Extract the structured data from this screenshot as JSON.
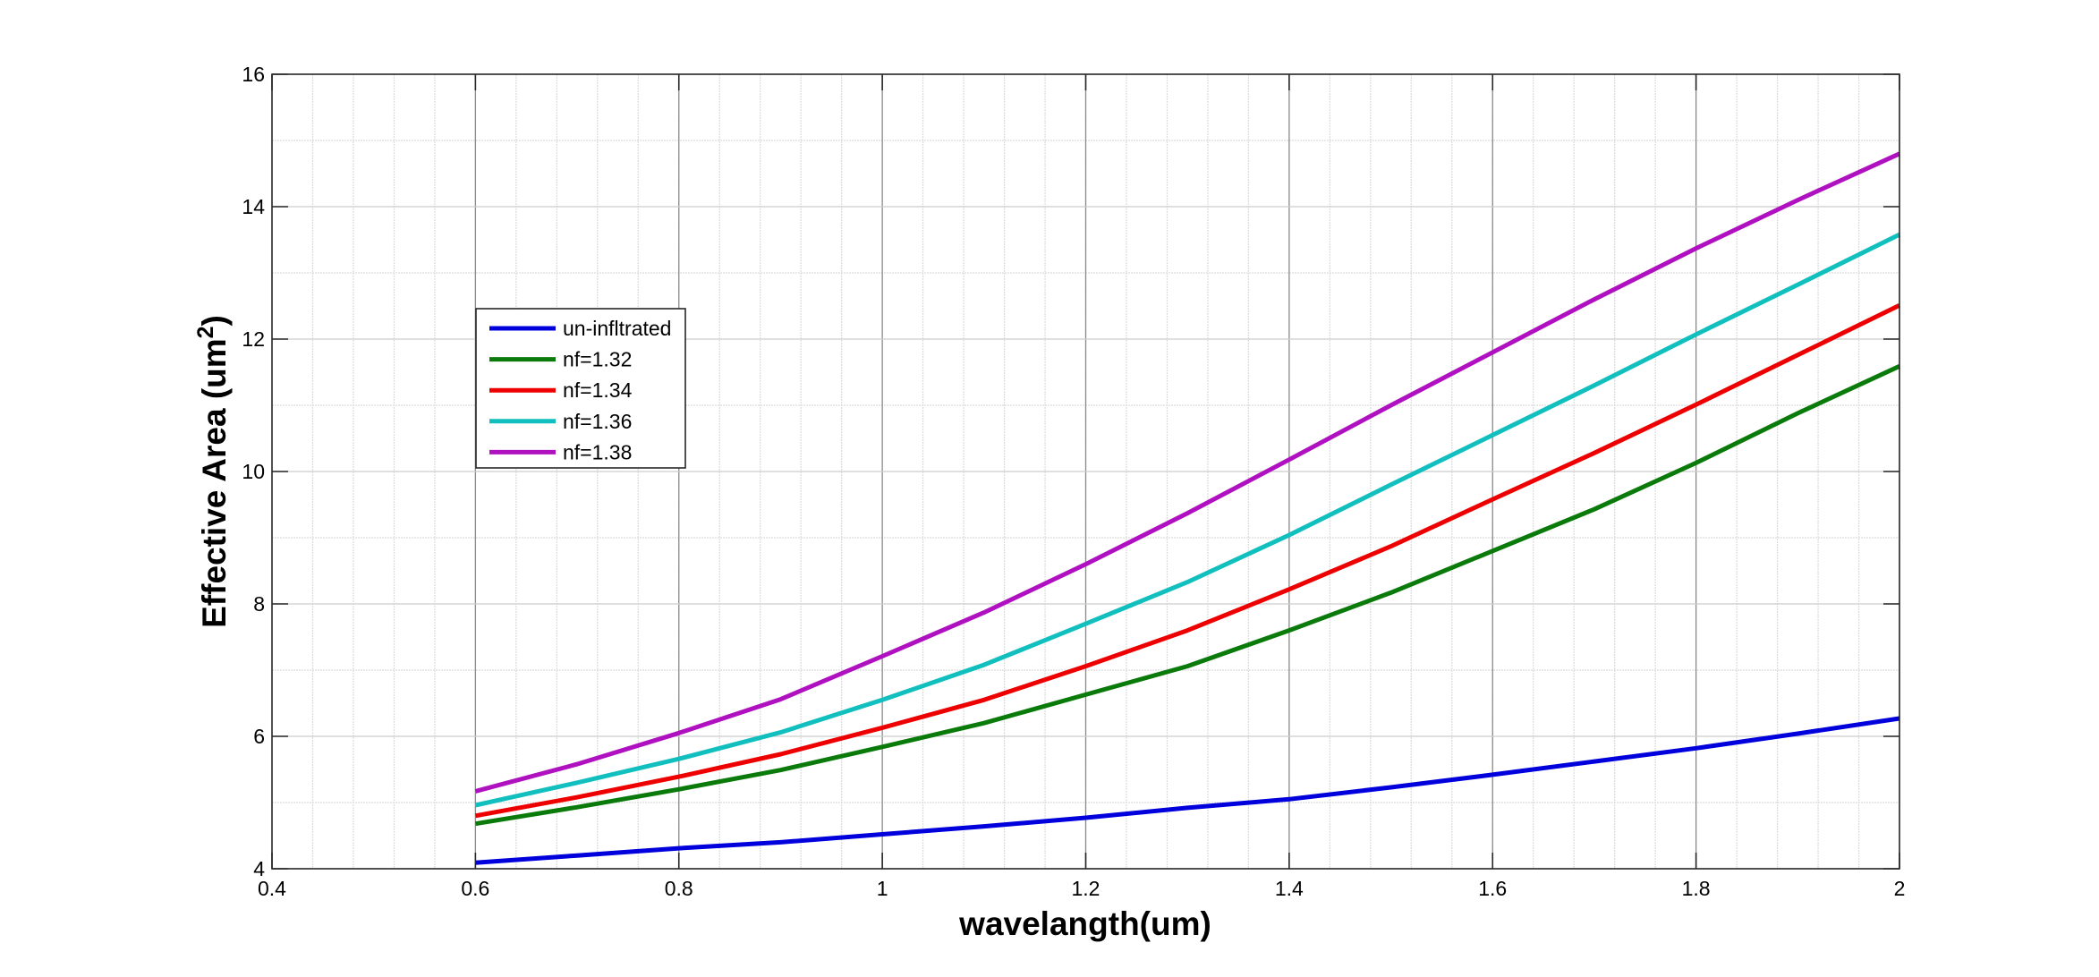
{
  "chart_data": {
    "type": "line",
    "title": "",
    "xlabel": "wavelangth(um)",
    "ylabel": "Effective Area (um",
    "ylabel_superscript": "2",
    "ylabel_suffix": ")",
    "xlim": [
      0.4,
      2
    ],
    "ylim": [
      4,
      16
    ],
    "xticks": [
      0.4,
      0.6,
      0.8,
      1,
      1.2,
      1.4,
      1.6,
      1.8,
      2
    ],
    "xtick_labels": [
      "0.4",
      "0.6",
      "0.8",
      "1",
      "1.2",
      "1.4",
      "1.6",
      "1.8",
      "2"
    ],
    "yticks": [
      4,
      6,
      8,
      10,
      12,
      14,
      16
    ],
    "ytick_labels": [
      "4",
      "6",
      "8",
      "10",
      "12",
      "14",
      "16"
    ],
    "grid": true,
    "minor_grid": true,
    "legend_position": "upper-left (inside axes)",
    "x": [
      0.6,
      0.7,
      0.8,
      0.9,
      1.0,
      1.1,
      1.2,
      1.3,
      1.4,
      1.5,
      1.6,
      1.7,
      1.8,
      1.9,
      2.0
    ],
    "series": [
      {
        "name": "un-infltrated",
        "color": "#0000dd",
        "values": [
          4.09,
          4.2,
          4.31,
          4.4,
          4.52,
          4.64,
          4.77,
          4.92,
          5.05,
          5.23,
          5.42,
          5.62,
          5.82,
          6.04,
          6.27
        ]
      },
      {
        "name": "nf=1.32",
        "color": "#0a7a0a",
        "values": [
          4.68,
          4.93,
          5.2,
          5.49,
          5.84,
          6.2,
          6.63,
          7.06,
          7.6,
          8.17,
          8.8,
          9.43,
          10.13,
          10.88,
          11.59
        ]
      },
      {
        "name": "nf=1.34",
        "color": "#ee0000",
        "values": [
          4.8,
          5.08,
          5.39,
          5.73,
          6.13,
          6.55,
          7.06,
          7.6,
          8.22,
          8.87,
          9.58,
          10.28,
          11.01,
          11.76,
          12.51
        ]
      },
      {
        "name": "nf=1.36",
        "color": "#11bfbf",
        "values": [
          4.96,
          5.3,
          5.66,
          6.06,
          6.55,
          7.08,
          7.7,
          8.33,
          9.04,
          9.8,
          10.55,
          11.3,
          12.07,
          12.82,
          13.58
        ]
      },
      {
        "name": "nf=1.38",
        "color": "#b011c0",
        "values": [
          5.17,
          5.58,
          6.05,
          6.56,
          7.21,
          7.87,
          8.6,
          9.37,
          10.18,
          11.0,
          11.8,
          12.6,
          13.37,
          14.1,
          14.8
        ]
      }
    ]
  }
}
